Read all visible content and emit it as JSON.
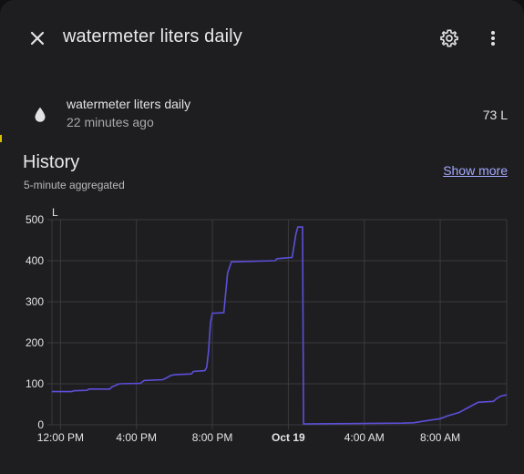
{
  "header": {
    "title": "watermeter liters daily",
    "close_icon": "close-icon",
    "settings_icon": "gear-icon",
    "more_icon": "more-vertical-icon"
  },
  "entity": {
    "icon": "water-drop-icon",
    "name": "watermeter liters daily",
    "last_changed": "22 minutes ago",
    "state": "73 L"
  },
  "history": {
    "title": "History",
    "subtitle": "5-minute aggregated",
    "show_more_label": "Show more"
  },
  "colors": {
    "background": "#1e1e21",
    "accent": "#a4a8ff",
    "series": "#5c4fd9",
    "grid": "#3b3b3f"
  },
  "chart_data": {
    "type": "line",
    "unit": "L",
    "ylim": [
      0,
      500
    ],
    "y_ticks": [
      0,
      100,
      200,
      300,
      400,
      500
    ],
    "x_ticks": [
      {
        "label": "12:00 PM",
        "t": 0,
        "bold": false
      },
      {
        "label": "4:00 PM",
        "t": 4,
        "bold": false
      },
      {
        "label": "8:00 PM",
        "t": 8,
        "bold": false
      },
      {
        "label": "Oct 19",
        "t": 12,
        "bold": true
      },
      {
        "label": "4:00 AM",
        "t": 16,
        "bold": false
      },
      {
        "label": "8:00 AM",
        "t": 20,
        "bold": false
      }
    ],
    "xlim": [
      -0.45,
      23.5
    ],
    "grid": true,
    "series": [
      {
        "points": [
          [
            -0.45,
            81
          ],
          [
            0.6,
            81
          ],
          [
            0.7,
            83
          ],
          [
            1.4,
            84
          ],
          [
            1.5,
            87
          ],
          [
            2.6,
            87
          ],
          [
            2.7,
            92
          ],
          [
            2.9,
            96
          ],
          [
            3.1,
            100
          ],
          [
            4.2,
            101
          ],
          [
            4.4,
            108
          ],
          [
            5.4,
            110
          ],
          [
            5.6,
            115
          ],
          [
            5.8,
            120
          ],
          [
            6.0,
            122
          ],
          [
            6.9,
            124
          ],
          [
            7.0,
            130
          ],
          [
            7.6,
            132
          ],
          [
            7.7,
            140
          ],
          [
            7.8,
            180
          ],
          [
            7.9,
            250
          ],
          [
            8.0,
            272
          ],
          [
            8.6,
            273
          ],
          [
            8.7,
            320
          ],
          [
            8.8,
            370
          ],
          [
            9.0,
            397
          ],
          [
            11.3,
            400
          ],
          [
            11.4,
            405
          ],
          [
            12.2,
            408
          ],
          [
            12.4,
            465
          ],
          [
            12.5,
            482
          ],
          [
            12.75,
            482
          ],
          [
            12.8,
            2
          ],
          [
            15,
            3
          ],
          [
            18.0,
            4
          ],
          [
            18.6,
            5
          ],
          [
            19.0,
            8
          ],
          [
            19.6,
            12
          ],
          [
            20.0,
            15
          ],
          [
            20.4,
            22
          ],
          [
            21.0,
            30
          ],
          [
            21.4,
            40
          ],
          [
            21.8,
            50
          ],
          [
            22.0,
            55
          ],
          [
            22.8,
            57
          ],
          [
            23.0,
            65
          ],
          [
            23.2,
            70
          ],
          [
            23.5,
            73
          ]
        ]
      }
    ]
  }
}
